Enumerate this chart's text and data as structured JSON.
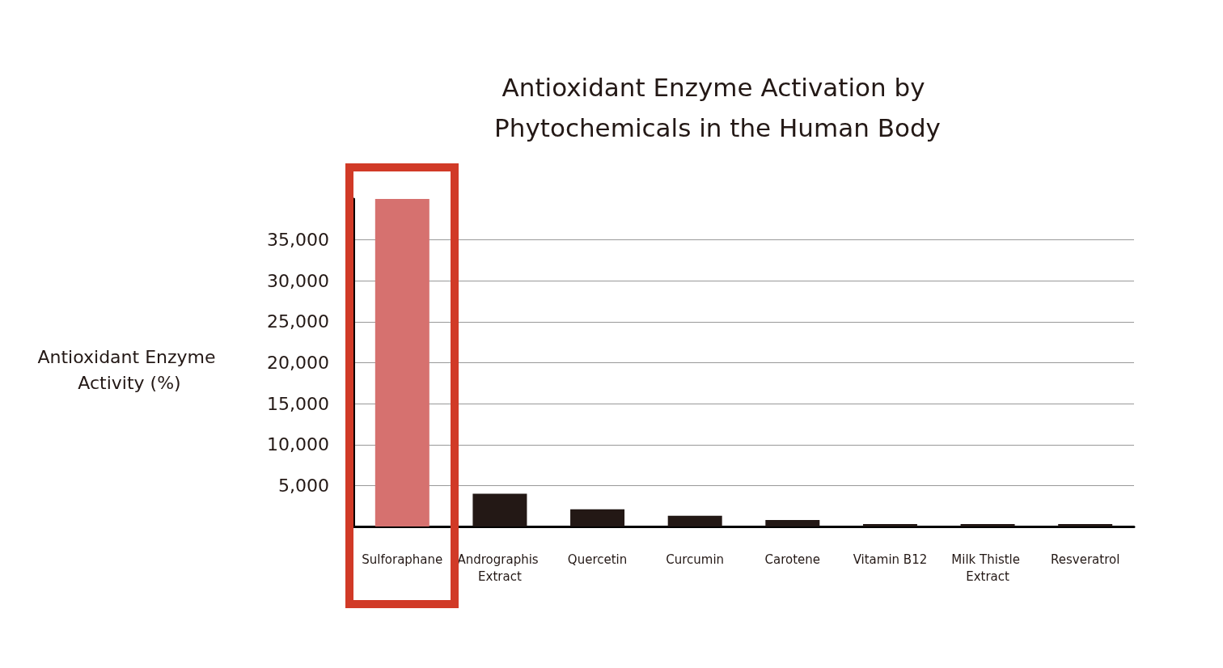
{
  "chart_data": {
    "type": "bar",
    "title": "Antioxidant Enzyme Activation by Phytochemicals in the Human Body",
    "ylabel": "Antioxidant Enzyme Activity (%)",
    "categories": [
      "Sulforaphane",
      "Andrographis Extract",
      "Quercetin",
      "Curcumin",
      "Carotene",
      "Vitamin B12",
      "Milk Thistle Extract",
      "Resveratrol"
    ],
    "values": [
      40000,
      4000,
      2100,
      1300,
      800,
      300,
      300,
      300
    ],
    "colors": [
      "#d6716f",
      "#231815",
      "#231815",
      "#231815",
      "#231815",
      "#231815",
      "#231815",
      "#231815"
    ],
    "ylim": [
      0,
      40000
    ],
    "yticks": [
      {
        "value": 5000,
        "label": "5,000"
      },
      {
        "value": 10000,
        "label": "10,000"
      },
      {
        "value": 15000,
        "label": "15,000"
      },
      {
        "value": 20000,
        "label": "20,000"
      },
      {
        "value": 25000,
        "label": "25,000"
      },
      {
        "value": 30000,
        "label": "30,000"
      },
      {
        "value": 35000,
        "label": "35,000"
      }
    ],
    "grid": "y"
  }
}
